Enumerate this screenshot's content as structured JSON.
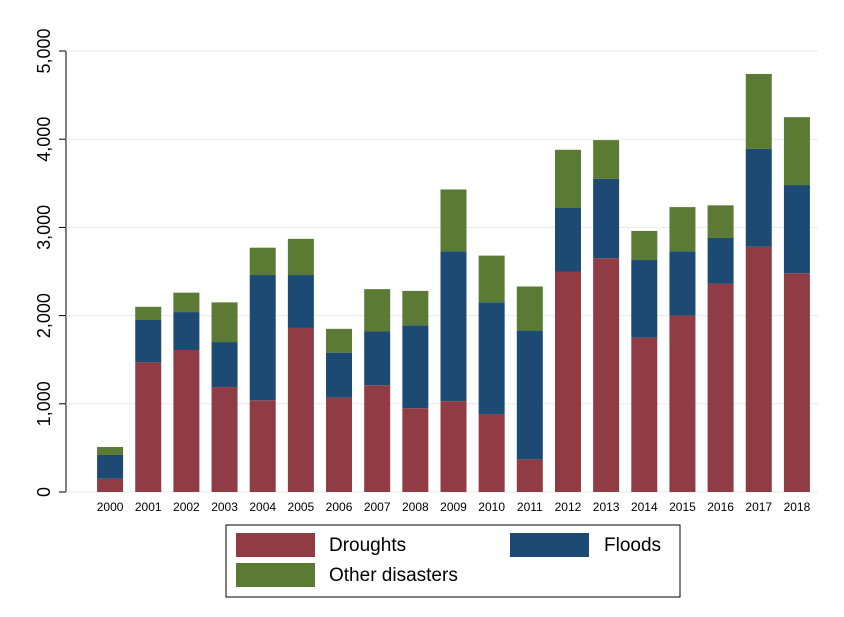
{
  "chart_data": {
    "type": "stacked_bar",
    "categories": [
      "2000",
      "2001",
      "2002",
      "2003",
      "2004",
      "2005",
      "2006",
      "2007",
      "2008",
      "2009",
      "2010",
      "2011",
      "2012",
      "2013",
      "2014",
      "2015",
      "2016",
      "2017",
      "2018"
    ],
    "series": [
      {
        "name": "Droughts",
        "color": "#913b45",
        "values": [
          150,
          1470,
          1610,
          1190,
          1040,
          1860,
          1070,
          1210,
          950,
          1030,
          880,
          370,
          2500,
          2650,
          1750,
          2000,
          2360,
          2780,
          2480
        ]
      },
      {
        "name": "Floods",
        "color": "#1c4a73",
        "values": [
          270,
          480,
          430,
          510,
          1420,
          600,
          510,
          610,
          940,
          1700,
          1270,
          1460,
          720,
          900,
          880,
          730,
          520,
          1110,
          1000
        ]
      },
      {
        "name": "Other disasters",
        "color": "#5b7b35",
        "values": [
          90,
          150,
          220,
          450,
          310,
          410,
          270,
          480,
          390,
          700,
          530,
          500,
          660,
          440,
          330,
          500,
          370,
          850,
          770
        ]
      }
    ],
    "ylim": [
      0,
      5000
    ],
    "yticks": [
      0,
      {
        "value": 1000,
        "label": "1,000"
      },
      {
        "value": 2000,
        "label": "2,000"
      },
      {
        "value": 3000,
        "label": "3,000"
      },
      {
        "value": 4000,
        "label": "4,000"
      },
      {
        "value": 5000,
        "label": "5,000"
      }
    ],
    "grid": true
  }
}
